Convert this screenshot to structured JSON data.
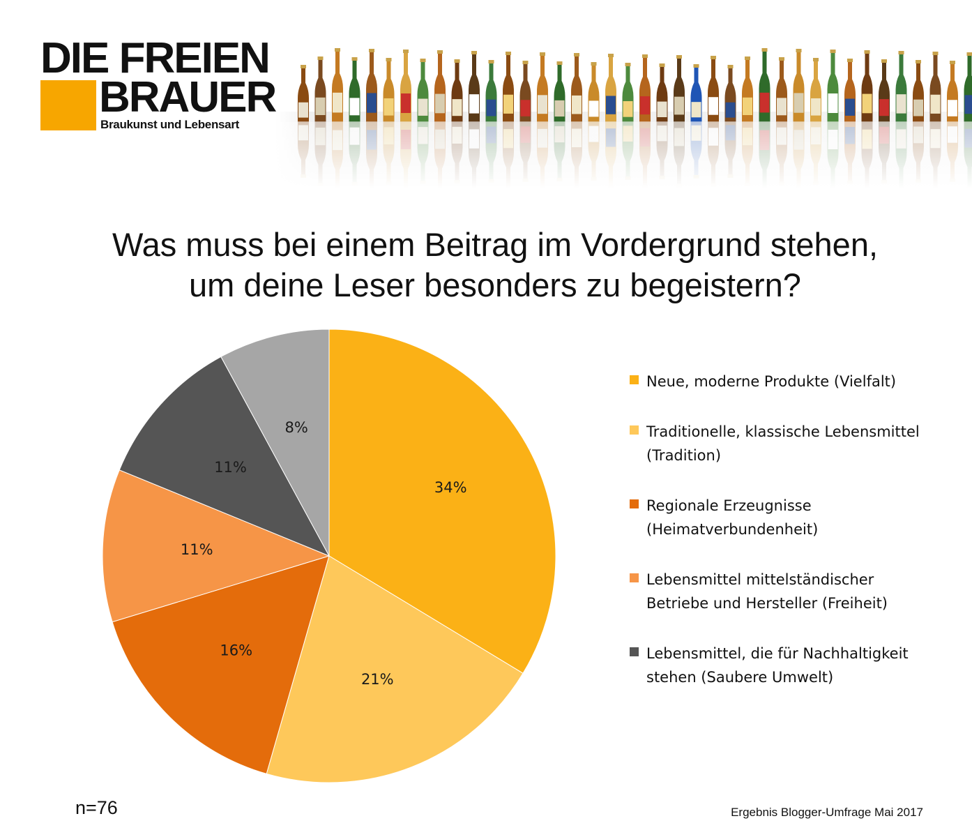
{
  "logo": {
    "line1": "DIE FREIEN",
    "line2": "BRAUER",
    "tagline": "Braukunst und Lebensart",
    "accent_color": "#f7a600"
  },
  "title_lines": [
    "Was muss bei einem Beitrag im Vordergrund stehen,",
    "um deine Leser besonders zu begeistern?"
  ],
  "sample_size": "n=76",
  "source_note": "Ergebnis Blogger-Umfrage Mai 2017",
  "chart_data": {
    "type": "pie",
    "start_angle_deg": 0,
    "direction": "clockwise",
    "slices": [
      {
        "value": 34,
        "label": "34%",
        "color": "#fbb116"
      },
      {
        "value": 21,
        "label": "21%",
        "color": "#fec85a"
      },
      {
        "value": 16,
        "label": "16%",
        "color": "#e46c0b"
      },
      {
        "value": 11,
        "label": "11%",
        "color": "#f69547"
      },
      {
        "value": 11,
        "label": "11%",
        "color": "#555555"
      },
      {
        "value": 8,
        "label": "8%",
        "color": "#a6a6a6"
      }
    ],
    "legend": [
      {
        "text": "Neue, moderne Produkte (Vielfalt)",
        "color": "#fbb116"
      },
      {
        "text": "Traditionelle, klassische Lebensmittel (Tradition)",
        "color": "#fec85a"
      },
      {
        "text": "Regionale Erzeugnisse (Heimatverbundenheit)",
        "color": "#e46c0b"
      },
      {
        "text": "Lebensmittel mittelständischer Betriebe und Hersteller (Freiheit)",
        "color": "#f69547"
      },
      {
        "text": "Lebensmittel, die für Nachhaltigkeit stehen (Saubere Umwelt)",
        "color": "#555555"
      }
    ],
    "legend_position": "right"
  }
}
